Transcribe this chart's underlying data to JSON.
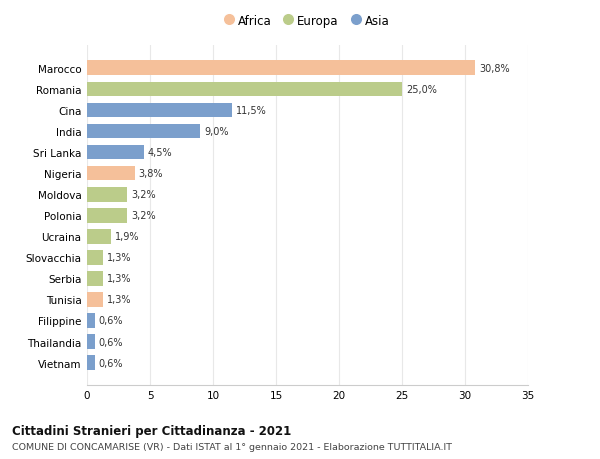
{
  "countries": [
    "Marocco",
    "Romania",
    "Cina",
    "India",
    "Sri Lanka",
    "Nigeria",
    "Moldova",
    "Polonia",
    "Ucraina",
    "Slovacchia",
    "Serbia",
    "Tunisia",
    "Filippine",
    "Thailandia",
    "Vietnam"
  ],
  "values": [
    30.8,
    25.0,
    11.5,
    9.0,
    4.5,
    3.8,
    3.2,
    3.2,
    1.9,
    1.3,
    1.3,
    1.3,
    0.6,
    0.6,
    0.6
  ],
  "labels": [
    "30,8%",
    "25,0%",
    "11,5%",
    "9,0%",
    "4,5%",
    "3,8%",
    "3,2%",
    "3,2%",
    "1,9%",
    "1,3%",
    "1,3%",
    "1,3%",
    "0,6%",
    "0,6%",
    "0,6%"
  ],
  "colors": [
    "#F5C09A",
    "#BBCC8A",
    "#7B9FCC",
    "#7B9FCC",
    "#7B9FCC",
    "#F5C09A",
    "#BBCC8A",
    "#BBCC8A",
    "#BBCC8A",
    "#BBCC8A",
    "#BBCC8A",
    "#F5C09A",
    "#7B9FCC",
    "#7B9FCC",
    "#7B9FCC"
  ],
  "legend_labels": [
    "Africa",
    "Europa",
    "Asia"
  ],
  "legend_colors": [
    "#F5C09A",
    "#BBCC8A",
    "#7B9FCC"
  ],
  "xlim": [
    0,
    35
  ],
  "xticks": [
    0,
    5,
    10,
    15,
    20,
    25,
    30,
    35
  ],
  "title_bold": "Cittadini Stranieri per Cittadinanza - 2021",
  "subtitle": "COMUNE DI CONCAMARISE (VR) - Dati ISTAT al 1° gennaio 2021 - Elaborazione TUTTITALIA.IT",
  "bg_color": "#ffffff",
  "grid_color": "#e8e8e8",
  "bar_height": 0.7
}
